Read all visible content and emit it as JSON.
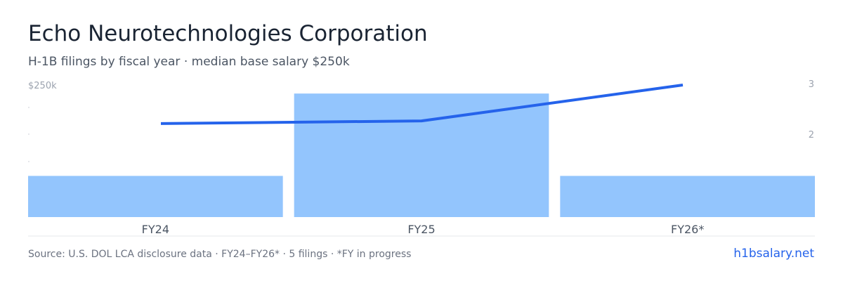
{
  "header": {
    "title": "Echo Neurotechnologies Corporation",
    "subtitle": "H-1B filings by fiscal year · median base salary $250k"
  },
  "footer": {
    "source": "Source: U.S. DOL LCA disclosure data · FY24–FY26* · 5 filings · *FY in progress",
    "brand": "h1bsalary.net"
  },
  "colors": {
    "bar": "#93c5fd",
    "line": "#2563eb",
    "axis_text": "#9ca3af",
    "category_text": "#4b5563",
    "baseline": "#e5e7eb"
  },
  "chart_data": {
    "type": "bar",
    "categories": [
      "FY24",
      "FY25",
      "FY26*"
    ],
    "series": [
      {
        "type": "bar",
        "axis": "right",
        "values": [
          1,
          3,
          1
        ]
      },
      {
        "type": "line",
        "axis": "left",
        "values": [
          177000,
          182000,
          250000
        ]
      }
    ],
    "left_axis": {
      "tick_labels": [
        "$250k"
      ],
      "max": 250000
    },
    "right_axis": {
      "tick_labels": [
        "3",
        "2"
      ],
      "ylim": [
        0,
        3.6
      ]
    },
    "grid": false,
    "legend": "none"
  }
}
